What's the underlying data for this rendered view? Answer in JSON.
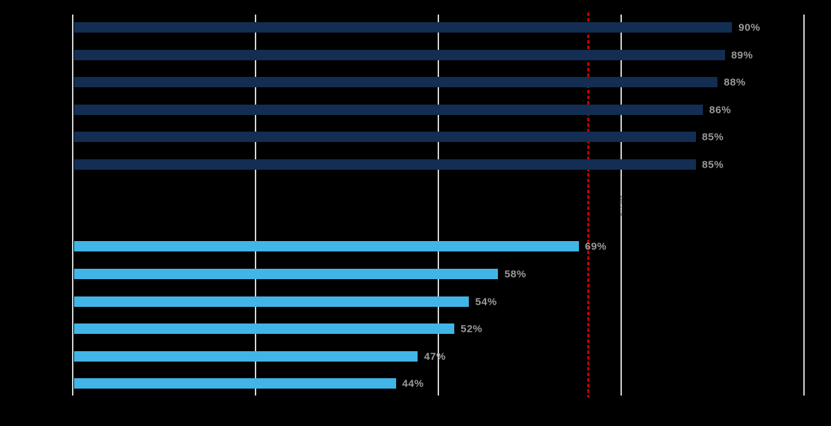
{
  "chart_data": {
    "type": "bar",
    "orientation": "horizontal",
    "title": "",
    "xlabel": "",
    "ylabel": "",
    "xlim": [
      0,
      100
    ],
    "grid_on": true,
    "gridlines_pct": [
      0,
      25,
      50,
      75,
      100
    ],
    "background_color": "#000000",
    "grid_color": "#d9d9d9",
    "value_label_color": "#9a9a9a",
    "series": [
      {
        "name": "top-group-dark-navy",
        "color": "#132e52",
        "values": [
          90,
          89,
          88,
          86,
          85,
          85
        ],
        "labels": [
          "90%",
          "89%",
          "88%",
          "86%",
          "85%",
          "85%"
        ]
      },
      {
        "name": "bottom-group-light-blue",
        "color": "#41b5e7",
        "values": [
          69,
          58,
          54,
          52,
          47,
          44
        ],
        "labels": [
          "69%",
          "58%",
          "54%",
          "52%",
          "47%",
          "44%"
        ]
      }
    ],
    "reference_line": {
      "value": 70.5,
      "color": "#c80000",
      "style": "dashed",
      "orientation": "vertical"
    },
    "annotation": {
      "text": "Avg 71%",
      "rotated": true
    }
  }
}
